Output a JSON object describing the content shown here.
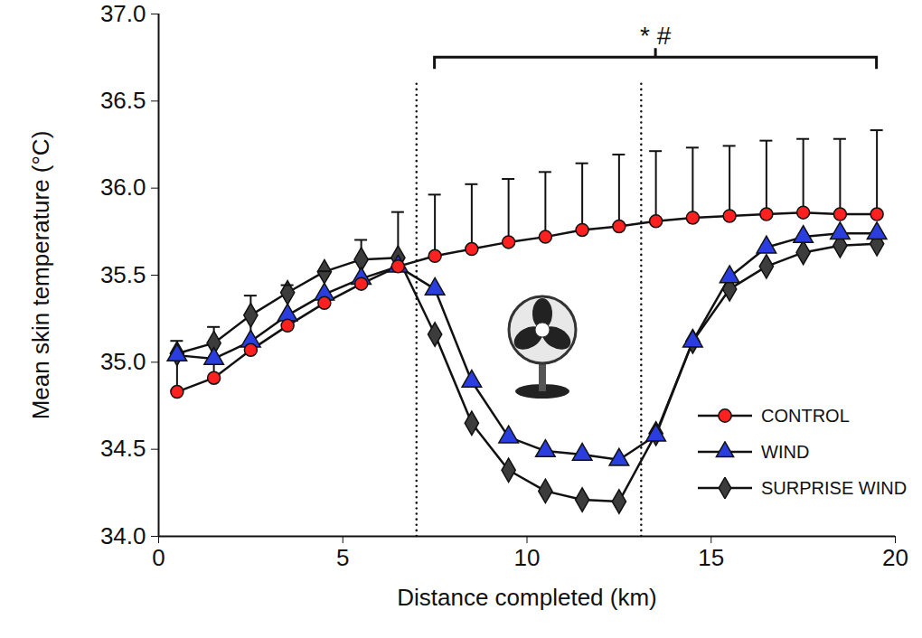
{
  "chart_data": {
    "type": "line",
    "x_label": "Distance completed (km)",
    "y_label": "Mean skin temperature (°C)",
    "x": [
      0.5,
      1.5,
      2.5,
      3.5,
      4.5,
      5.5,
      6.5,
      7.5,
      8.5,
      9.5,
      10.5,
      11.5,
      12.5,
      13.5,
      14.5,
      15.5,
      16.5,
      17.5,
      18.5,
      19.5
    ],
    "series": [
      {
        "name": "CONTROL",
        "color": "#ff2020",
        "marker": "circle",
        "values": [
          34.83,
          34.91,
          35.07,
          35.21,
          35.34,
          35.45,
          35.55,
          35.61,
          35.65,
          35.69,
          35.72,
          35.76,
          35.78,
          35.81,
          35.83,
          35.84,
          35.85,
          35.86,
          35.85,
          35.85
        ],
        "error": [
          0.29,
          0.29,
          0.31,
          0.23,
          0.18,
          0.25,
          0.31,
          0.35,
          0.37,
          0.36,
          0.37,
          0.38,
          0.41,
          0.4,
          0.4,
          0.4,
          0.42,
          0.42,
          0.43,
          0.48
        ]
      },
      {
        "name": "WIND",
        "color": "#2a3ee0",
        "marker": "triangle",
        "values": [
          35.04,
          35.02,
          35.12,
          35.27,
          35.39,
          35.48,
          35.55,
          35.42,
          34.89,
          34.57,
          34.49,
          34.47,
          34.44,
          34.58,
          35.12,
          35.49,
          35.66,
          35.72,
          35.74,
          35.74
        ]
      },
      {
        "name": "SURPRISE WIND",
        "color": "#3c3c3c",
        "marker": "diamond",
        "values": [
          35.05,
          35.11,
          35.27,
          35.4,
          35.52,
          35.59,
          35.6,
          35.16,
          34.65,
          34.38,
          34.26,
          34.21,
          34.2,
          34.59,
          35.12,
          35.42,
          35.55,
          35.63,
          35.67,
          35.68
        ]
      }
    ],
    "xlim": [
      0,
      20
    ],
    "xticks": [
      0,
      5,
      10,
      15,
      20
    ],
    "ylim": [
      34,
      37
    ],
    "yticks": [
      {
        "value": 34,
        "label": "34.0"
      },
      34.5,
      {
        "value": 35,
        "label": "35.0"
      },
      35.5,
      {
        "value": 36,
        "label": "36.0"
      },
      36.5,
      {
        "value": 37,
        "label": "37.0"
      }
    ],
    "vlines": {
      "x": [
        7,
        13.1
      ],
      "top": 36.6
    },
    "bracket": {
      "x": [
        7.5,
        19.5
      ],
      "y": 36.75,
      "label": "* #"
    },
    "grid": false,
    "legend": "lower right"
  }
}
